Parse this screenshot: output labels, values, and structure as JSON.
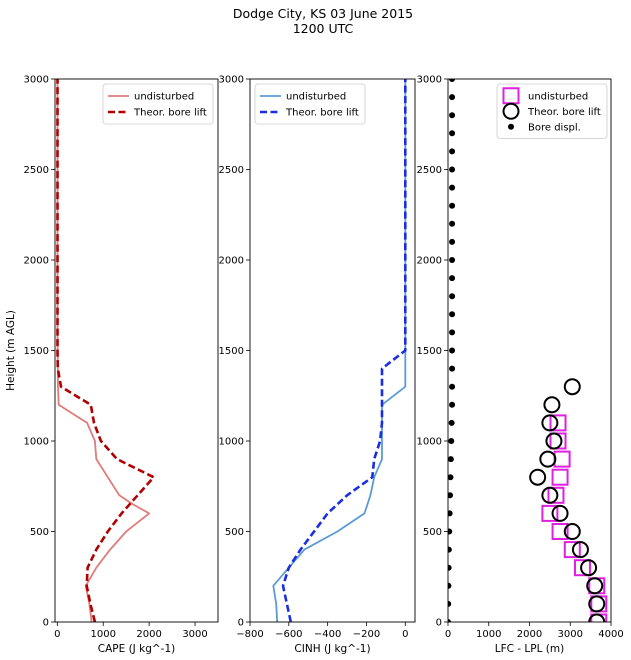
{
  "figure": {
    "title_line1": "Dodge City, KS 03 June 2015",
    "title_line2": "1200 UTC"
  },
  "chart_data": [
    {
      "type": "line",
      "xlabel": "CAPE (J kg^-1)",
      "ylabel": "Height (m AGL)",
      "xlim": [
        -50,
        3500
      ],
      "ylim": [
        0,
        3000
      ],
      "xticks": [
        0,
        1000,
        2000,
        3000
      ],
      "yticks": [
        0,
        500,
        1000,
        1500,
        2000,
        2500,
        3000
      ],
      "legend_position": "upper right",
      "series": [
        {
          "name": "undisturbed",
          "color": "#e07b7b",
          "style": "solid",
          "points": [
            [
              750,
              0
            ],
            [
              700,
              100
            ],
            [
              620,
              200
            ],
            [
              850,
              300
            ],
            [
              1150,
              400
            ],
            [
              1500,
              500
            ],
            [
              2000,
              600
            ],
            [
              1650,
              650
            ],
            [
              1350,
              700
            ],
            [
              1100,
              800
            ],
            [
              850,
              900
            ],
            [
              820,
              1000
            ],
            [
              650,
              1100
            ],
            [
              30,
              1200
            ],
            [
              15,
              1300
            ],
            [
              10,
              1400
            ],
            [
              5,
              1600
            ],
            [
              5,
              2000
            ],
            [
              5,
              2500
            ],
            [
              5,
              3000
            ]
          ]
        },
        {
          "name": "Theor. bore lift",
          "color": "#b00000",
          "style": "dashed",
          "points": [
            [
              820,
              0
            ],
            [
              720,
              100
            ],
            [
              640,
              200
            ],
            [
              660,
              300
            ],
            [
              850,
              400
            ],
            [
              1100,
              500
            ],
            [
              1400,
              600
            ],
            [
              1750,
              700
            ],
            [
              2100,
              800
            ],
            [
              1300,
              900
            ],
            [
              950,
              1000
            ],
            [
              800,
              1100
            ],
            [
              730,
              1200
            ],
            [
              80,
              1300
            ],
            [
              10,
              1400
            ],
            [
              5,
              1500
            ],
            [
              5,
              2000
            ],
            [
              5,
              2500
            ],
            [
              5,
              3000
            ]
          ]
        }
      ]
    },
    {
      "type": "line",
      "xlabel": "CINH (J kg^-1)",
      "xlim": [
        -800,
        50
      ],
      "ylim": [
        0,
        3000
      ],
      "xticks": [
        -800,
        -600,
        -400,
        -200,
        0
      ],
      "yticks": [
        0,
        500,
        1000,
        1500,
        2000,
        2500,
        3000
      ],
      "legend_position": "upper left",
      "series": [
        {
          "name": "undisturbed",
          "color": "#5b9bd5",
          "style": "solid",
          "points": [
            [
              -660,
              0
            ],
            [
              -665,
              100
            ],
            [
              -680,
              200
            ],
            [
              -600,
              300
            ],
            [
              -520,
              400
            ],
            [
              -350,
              500
            ],
            [
              -210,
              600
            ],
            [
              -180,
              700
            ],
            [
              -160,
              800
            ],
            [
              -120,
              900
            ],
            [
              -120,
              1000
            ],
            [
              -120,
              1100
            ],
            [
              -120,
              1200
            ],
            [
              0,
              1300
            ],
            [
              0,
              1500
            ],
            [
              0,
              2000
            ],
            [
              0,
              2500
            ],
            [
              0,
              3000
            ]
          ]
        },
        {
          "name": "Theor. bore lift",
          "color": "#1a2ee0",
          "style": "dashed",
          "points": [
            [
              -590,
              0
            ],
            [
              -610,
              100
            ],
            [
              -630,
              200
            ],
            [
              -600,
              300
            ],
            [
              -540,
              400
            ],
            [
              -470,
              500
            ],
            [
              -400,
              600
            ],
            [
              -300,
              700
            ],
            [
              -170,
              800
            ],
            [
              -160,
              900
            ],
            [
              -130,
              1000
            ],
            [
              -120,
              1100
            ],
            [
              -120,
              1200
            ],
            [
              -120,
              1300
            ],
            [
              -120,
              1400
            ],
            [
              0,
              1500
            ],
            [
              0,
              1550
            ],
            [
              0,
              2000
            ],
            [
              0,
              2500
            ],
            [
              0,
              3000
            ]
          ]
        }
      ]
    },
    {
      "type": "scatter",
      "xlabel": "LFC - LPL (m)",
      "xlim": [
        0,
        4000
      ],
      "ylim": [
        0,
        3000
      ],
      "xticks": [
        0,
        1000,
        2000,
        3000,
        4000
      ],
      "yticks": [
        0,
        500,
        1000,
        1500,
        2000,
        2500,
        3000
      ],
      "legend_position": "upper right",
      "series": [
        {
          "name": "undisturbed",
          "color": "#e020e0",
          "marker": "square",
          "points": [
            [
              3700,
              0
            ],
            [
              3700,
              100
            ],
            [
              3650,
              200
            ],
            [
              3300,
              300
            ],
            [
              3050,
              400
            ],
            [
              2750,
              500
            ],
            [
              2500,
              600
            ],
            [
              2650,
              700
            ],
            [
              2750,
              800
            ],
            [
              2800,
              900
            ],
            [
              2700,
              1000
            ],
            [
              2700,
              1100
            ]
          ]
        },
        {
          "name": "Theor. bore lift",
          "color": "#000000",
          "marker": "circle",
          "points": [
            [
              3650,
              0
            ],
            [
              3650,
              100
            ],
            [
              3600,
              200
            ],
            [
              3450,
              300
            ],
            [
              3250,
              400
            ],
            [
              3050,
              500
            ],
            [
              2750,
              600
            ],
            [
              2500,
              700
            ],
            [
              2200,
              800
            ],
            [
              2450,
              900
            ],
            [
              2600,
              1000
            ],
            [
              2500,
              1100
            ],
            [
              2550,
              1200
            ],
            [
              3050,
              1300
            ]
          ]
        },
        {
          "name": "Bore displ.",
          "color": "#000000",
          "marker": "dot",
          "points": [
            [
              0,
              0
            ],
            [
              5,
              100
            ],
            [
              10,
              200
            ],
            [
              15,
              300
            ],
            [
              20,
              400
            ],
            [
              30,
              500
            ],
            [
              40,
              600
            ],
            [
              50,
              700
            ],
            [
              60,
              800
            ],
            [
              70,
              900
            ],
            [
              80,
              1000
            ],
            [
              90,
              1100
            ],
            [
              100,
              1200
            ],
            [
              100,
              1300
            ],
            [
              100,
              1400
            ],
            [
              100,
              1500
            ],
            [
              100,
              1600
            ],
            [
              100,
              1700
            ],
            [
              100,
              1800
            ],
            [
              100,
              1900
            ],
            [
              100,
              2000
            ],
            [
              100,
              2100
            ],
            [
              100,
              2200
            ],
            [
              100,
              2300
            ],
            [
              100,
              2400
            ],
            [
              100,
              2500
            ],
            [
              100,
              2600
            ],
            [
              100,
              2700
            ],
            [
              100,
              2800
            ],
            [
              100,
              2900
            ],
            [
              100,
              3000
            ]
          ]
        }
      ]
    }
  ]
}
